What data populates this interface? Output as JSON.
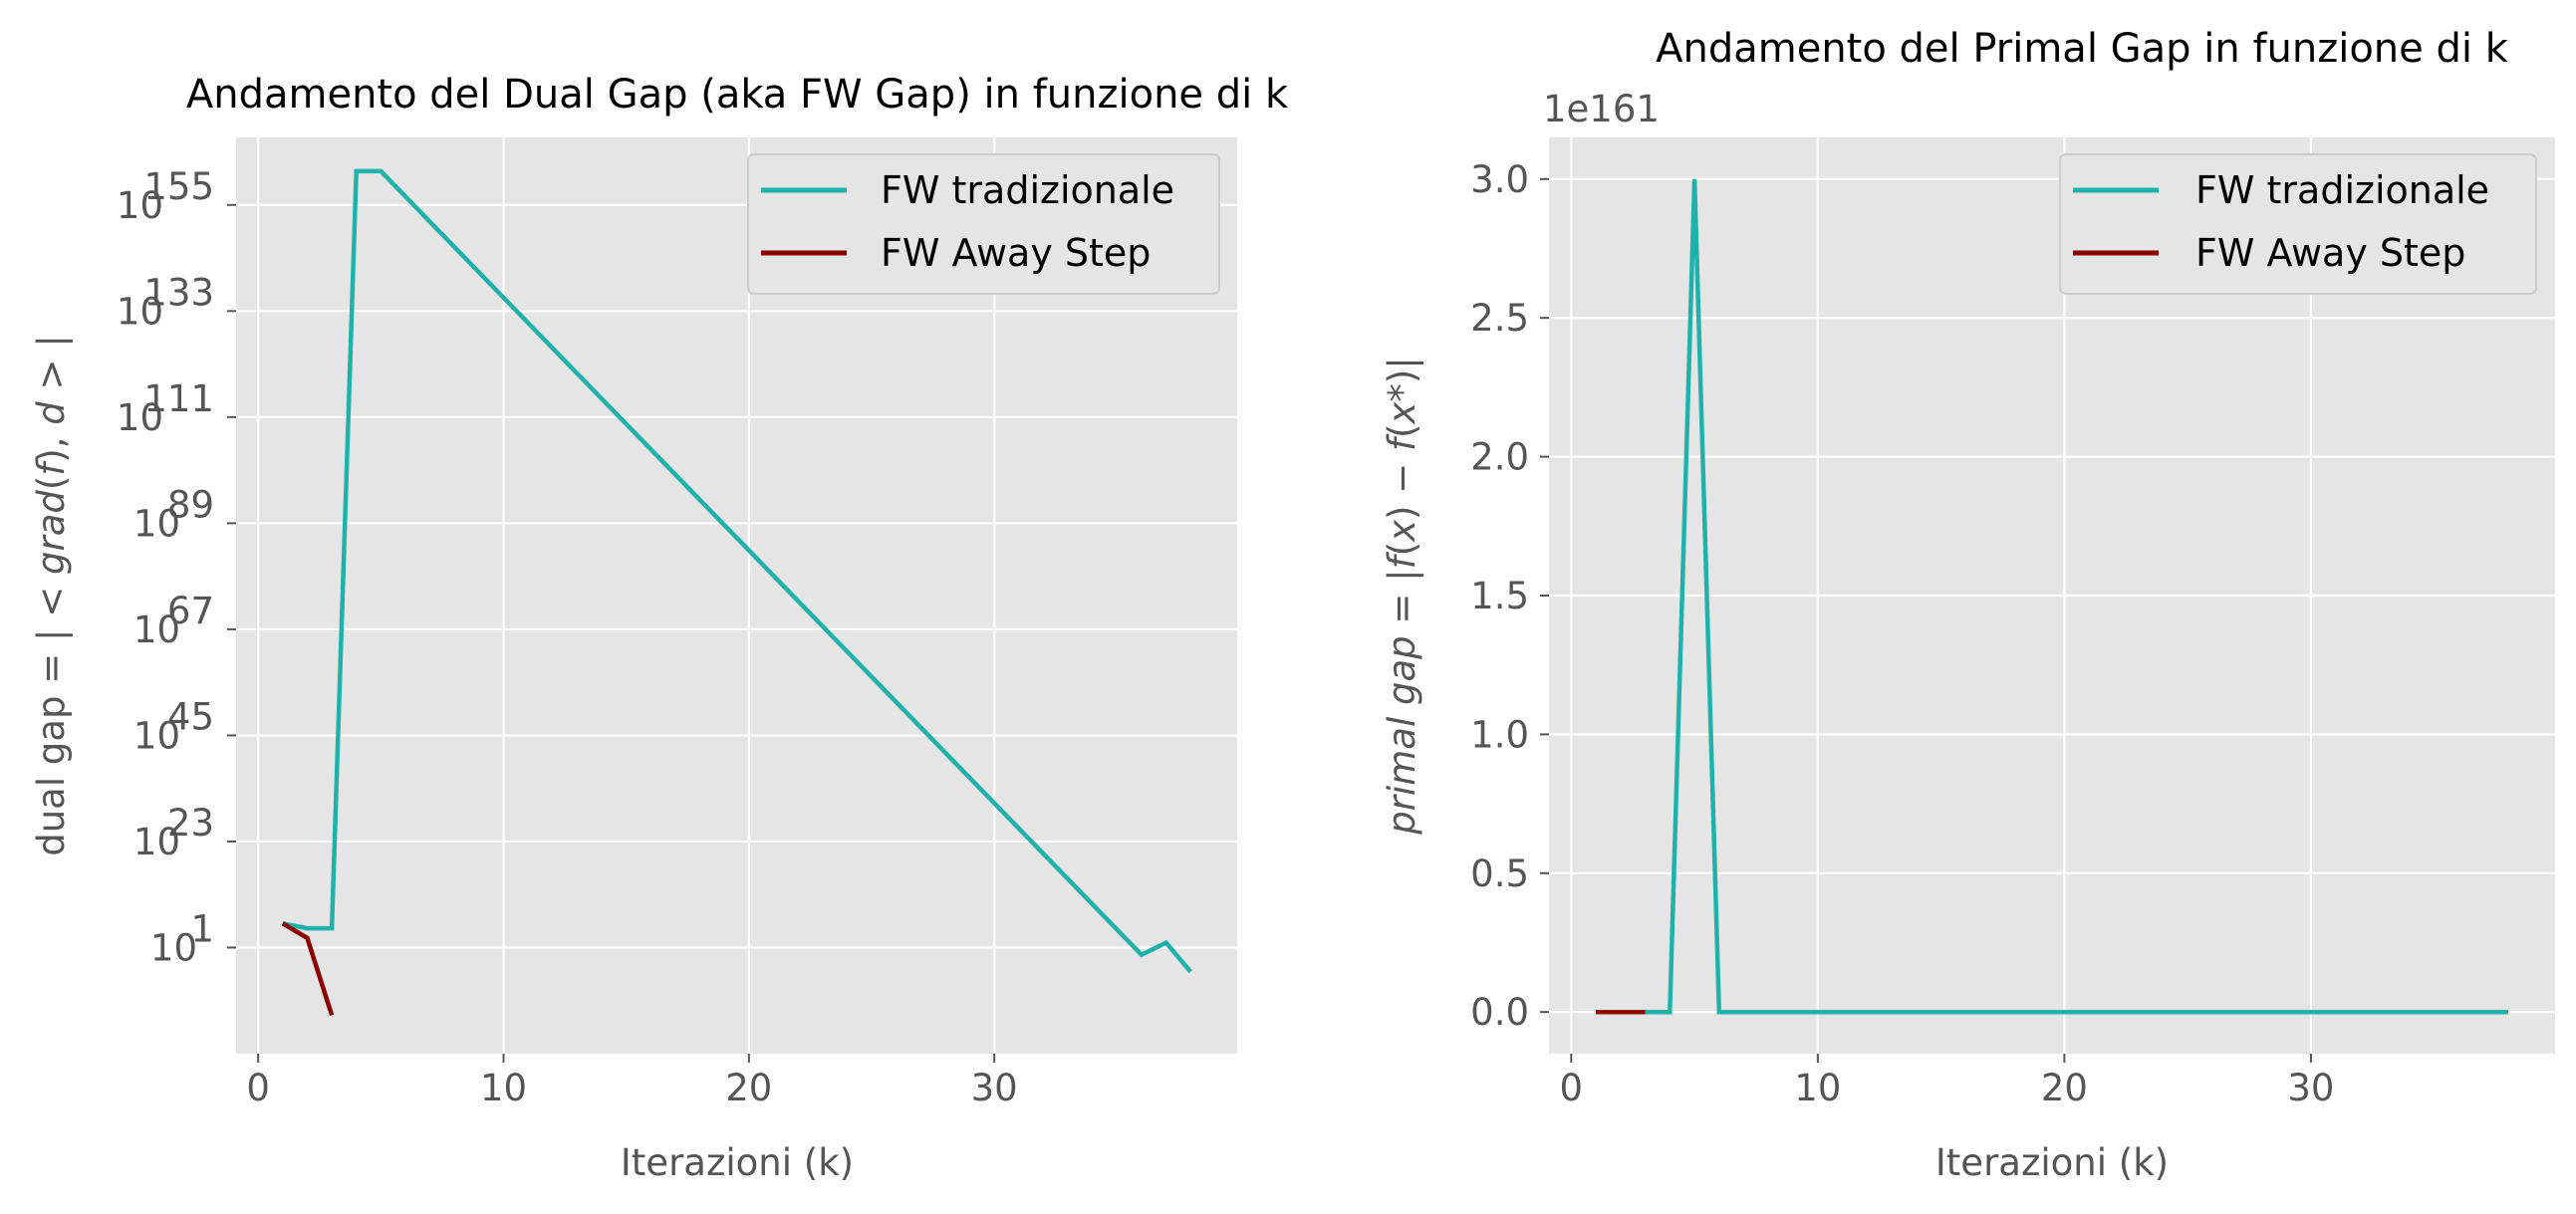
{
  "colors": {
    "background": "#E5E5E5",
    "grid": "#FFFFFF",
    "fw_tradizionale": "#20B2AA",
    "fw_away_step": "#8B0000",
    "tick_text": "#555555"
  },
  "chart_data": [
    {
      "type": "line",
      "title": "Andamento del Dual Gap (aka FW Gap) in funzione di k",
      "xlabel": "Iterazioni (k)",
      "ylabel": "dual gap = | < grad(f), d > |",
      "yscale": "log",
      "xlim": [
        -0.9,
        39.9
      ],
      "ylim_log10": [
        -21,
        169
      ],
      "xticks": [
        0,
        10,
        20,
        30
      ],
      "xtick_labels": [
        "0",
        "10",
        "20",
        "30"
      ],
      "yticks_log10": [
        1,
        23,
        45,
        67,
        89,
        111,
        133,
        155
      ],
      "ytick_labels": [
        "10",
        "10",
        "10",
        "10",
        "10",
        "10",
        "10",
        "10"
      ],
      "ytick_exponents": [
        "1",
        "23",
        "45",
        "67",
        "89",
        "111",
        "133",
        "155"
      ],
      "grid": true,
      "legend_position": "top-right",
      "series": [
        {
          "name": "FW tradizionale",
          "color": "#20B2AA",
          "x": [
            1,
            2,
            3,
            4,
            5,
            36,
            37,
            38
          ],
          "y_log10": [
            6,
            5,
            5,
            162,
            162,
            -0.5,
            2,
            -4
          ]
        },
        {
          "name": "FW Away Step",
          "color": "#8B0000",
          "x": [
            1,
            2,
            3
          ],
          "y_log10": [
            6,
            3,
            -13
          ]
        }
      ]
    },
    {
      "type": "line",
      "title": "Andamento del Primal Gap in funzione di k",
      "xlabel": "Iterazioni (k)",
      "ylabel": "primal gap = |f(x) − f(x*)|",
      "y_offset_label": "1e161",
      "xlim": [
        -0.9,
        39.9
      ],
      "ylim": [
        -0.15,
        3.15
      ],
      "xticks": [
        0,
        10,
        20,
        30
      ],
      "xtick_labels": [
        "0",
        "10",
        "20",
        "30"
      ],
      "yticks": [
        0.0,
        0.5,
        1.0,
        1.5,
        2.0,
        2.5,
        3.0
      ],
      "ytick_labels": [
        "0.0",
        "0.5",
        "1.0",
        "1.5",
        "2.0",
        "2.5",
        "3.0"
      ],
      "grid": true,
      "legend_position": "top-right",
      "series": [
        {
          "name": "FW tradizionale",
          "color": "#20B2AA",
          "x": [
            1,
            2,
            3,
            4,
            5,
            6,
            7,
            38
          ],
          "y": [
            0,
            0,
            0,
            0,
            3.0,
            0,
            0,
            0
          ]
        },
        {
          "name": "FW Away Step",
          "color": "#8B0000",
          "x": [
            1,
            2,
            3
          ],
          "y": [
            0,
            0,
            0
          ]
        }
      ]
    }
  ]
}
